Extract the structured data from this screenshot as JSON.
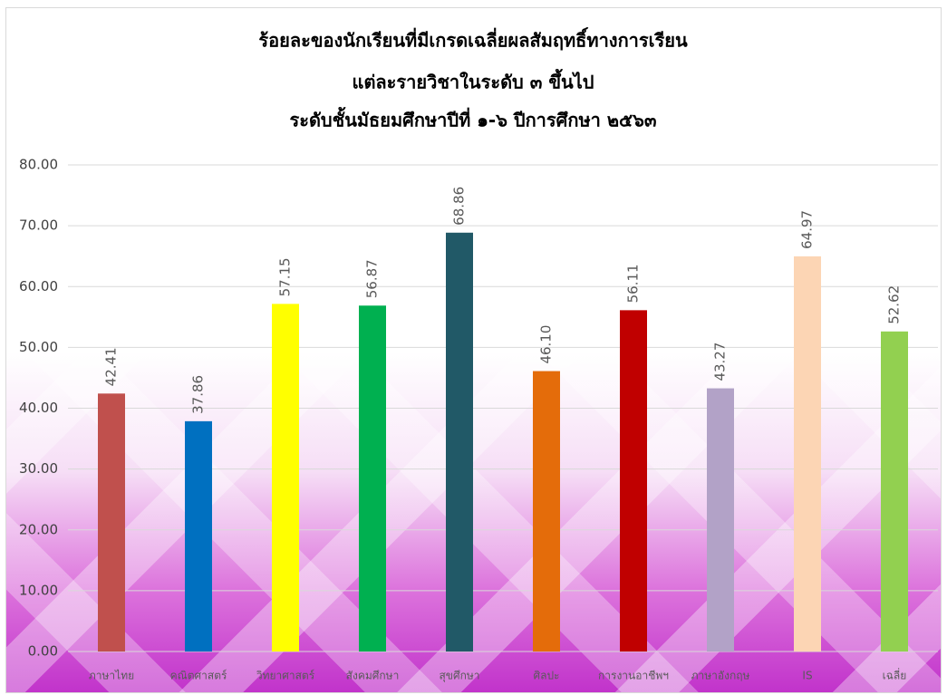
{
  "chart_data": {
    "type": "bar",
    "title": [
      "ร้อยละของนักเรียนที่มีเกรดเฉลี่ยผลสัมฤทธิ์ทางการเรียน",
      "แต่ละรายวิชาในระดับ ๓ ขึ้นไป",
      "ระดับชั้นมัธยมศึกษาปีที่ ๑-๖ ปีการศึกษา ๒๕๖๓"
    ],
    "categories": [
      "ภาษาไทย",
      "คณิตศาสตร์",
      "วิทยาศาสตร์",
      "สังคมศึกษา",
      "สุขศึกษา",
      "ศิลปะ",
      "การงานอาชีพฯ",
      "ภาษาอังกฤษ",
      "IS",
      "เฉลี่ย"
    ],
    "values": [
      42.41,
      37.86,
      57.15,
      56.87,
      68.86,
      46.1,
      56.11,
      43.27,
      64.97,
      52.62
    ],
    "value_labels": [
      "42.41",
      "37.86",
      "57.15",
      "56.87",
      "68.86",
      "46.10",
      "56.11",
      "43.27",
      "64.97",
      "52.62"
    ],
    "colors": [
      "#c0504d",
      "#0070c0",
      "#ffff00",
      "#00b050",
      "#215967",
      "#e46c0a",
      "#c00000",
      "#b2a2c7",
      "#fcd5b4",
      "#92d050"
    ],
    "ylim": [
      0,
      80
    ],
    "yticks": [
      {
        "value": 0,
        "label": "0.00"
      },
      {
        "value": 10,
        "label": "10.00"
      },
      {
        "value": 20,
        "label": "20.00"
      },
      {
        "value": 30,
        "label": "30.00"
      },
      {
        "value": 40,
        "label": "40.00"
      },
      {
        "value": 50,
        "label": "50.00"
      },
      {
        "value": 60,
        "label": "60.00"
      },
      {
        "value": 70,
        "label": "70.00"
      },
      {
        "value": 80,
        "label": "80.00"
      }
    ],
    "grid": true
  }
}
